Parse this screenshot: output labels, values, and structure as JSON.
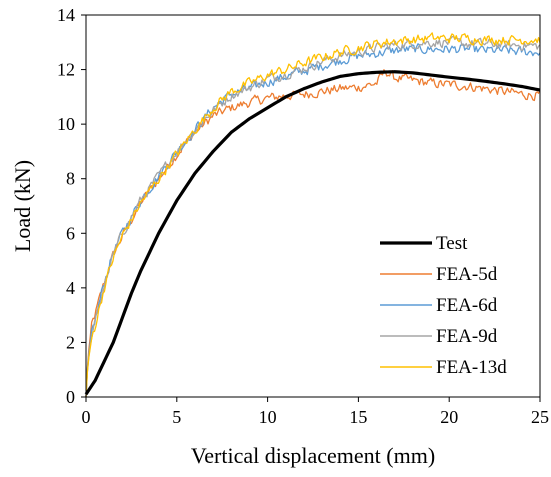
{
  "chart_data": {
    "type": "line",
    "xlabel": "Vertical displacement (mm)",
    "ylabel": "Load (kN)",
    "xlim": [
      0,
      25
    ],
    "ylim": [
      0,
      14
    ],
    "xticks": [
      "0",
      "5",
      "10",
      "15",
      "20",
      "25"
    ],
    "yticks": [
      "0",
      "2",
      "4",
      "6",
      "8",
      "10",
      "12",
      "14"
    ],
    "grid": false,
    "legend_position": "bottom-right",
    "series": [
      {
        "name": "Test",
        "color": "#000000",
        "line_style": "thick-solid",
        "x": [
          0,
          0.5,
          1,
          1.5,
          2,
          2.5,
          3,
          3.5,
          4,
          5,
          6,
          7,
          8,
          9,
          10,
          11,
          12,
          13,
          14,
          15,
          16,
          17,
          18,
          19,
          20,
          21,
          22,
          23,
          24,
          25
        ],
        "y": [
          0.1,
          0.6,
          1.3,
          2.0,
          2.9,
          3.8,
          4.6,
          5.3,
          6.0,
          7.2,
          8.2,
          9.0,
          9.7,
          10.2,
          10.6,
          11.0,
          11.3,
          11.55,
          11.75,
          11.85,
          11.9,
          11.92,
          11.88,
          11.8,
          11.72,
          11.65,
          11.57,
          11.48,
          11.38,
          11.25
        ]
      },
      {
        "name": "FEA-5d",
        "color": "#ED7D31",
        "line_style": "thin-noisy",
        "x": [
          0,
          0.1,
          0.3,
          0.5,
          1,
          1.5,
          2,
          3,
          4,
          5,
          6,
          7,
          8,
          9,
          10,
          11,
          12,
          13,
          14,
          15,
          16,
          16.5,
          17,
          18,
          19,
          20,
          21,
          22,
          23,
          24,
          25
        ],
        "y": [
          0,
          1.4,
          2.6,
          3.0,
          4.2,
          5.2,
          5.9,
          7.1,
          8.0,
          8.9,
          9.7,
          10.3,
          10.6,
          10.8,
          10.95,
          11.05,
          11.1,
          11.2,
          11.3,
          11.35,
          11.5,
          11.95,
          11.7,
          11.6,
          11.5,
          11.45,
          11.4,
          11.3,
          11.2,
          11.1,
          11.05
        ]
      },
      {
        "name": "FEA-6d",
        "color": "#5B9BD5",
        "line_style": "thin-noisy",
        "x": [
          0,
          0.1,
          0.3,
          0.5,
          1,
          1.5,
          2,
          3,
          4,
          5,
          6,
          7,
          8,
          9,
          10,
          11,
          12,
          13,
          14,
          15,
          16,
          17,
          18,
          19,
          20,
          21,
          22,
          23,
          24,
          25
        ],
        "y": [
          0,
          1.3,
          2.3,
          2.8,
          4.2,
          5.3,
          6.0,
          7.2,
          8.1,
          9.0,
          9.8,
          10.6,
          11.1,
          11.3,
          11.55,
          11.75,
          11.95,
          12.15,
          12.35,
          12.5,
          12.6,
          12.7,
          12.75,
          12.75,
          12.75,
          12.75,
          12.7,
          12.7,
          12.65,
          12.65
        ]
      },
      {
        "name": "FEA-9d",
        "color": "#A5A5A5",
        "line_style": "thin-noisy",
        "x": [
          0,
          0.1,
          0.3,
          0.5,
          1,
          1.5,
          2,
          3,
          4,
          5,
          6,
          7,
          8,
          9,
          10,
          11,
          12,
          13,
          14,
          15,
          16,
          17,
          18,
          19,
          20,
          21,
          22,
          23,
          24,
          25
        ],
        "y": [
          0,
          1.2,
          2.2,
          2.7,
          4.1,
          5.2,
          6.0,
          7.2,
          8.1,
          9.0,
          9.8,
          10.5,
          11.05,
          11.35,
          11.65,
          11.85,
          12.05,
          12.3,
          12.5,
          12.65,
          12.8,
          12.9,
          12.95,
          13.0,
          13.0,
          12.95,
          12.95,
          12.9,
          12.9,
          12.85
        ]
      },
      {
        "name": "FEA-13d",
        "color": "#FFC000",
        "line_style": "thin-noisy",
        "x": [
          0,
          0.1,
          0.3,
          0.5,
          1,
          1.5,
          2,
          3,
          4,
          5,
          6,
          7,
          8,
          9,
          10,
          11,
          12,
          13,
          14,
          15,
          16,
          17,
          18,
          19,
          20,
          21,
          22,
          23,
          24,
          25
        ],
        "y": [
          0,
          1.2,
          2.1,
          2.6,
          4.0,
          5.1,
          5.9,
          7.1,
          8.0,
          8.9,
          9.8,
          10.6,
          11.2,
          11.5,
          11.8,
          12.0,
          12.25,
          12.45,
          12.65,
          12.8,
          12.95,
          13.05,
          13.1,
          13.15,
          13.15,
          13.15,
          13.1,
          13.1,
          13.1,
          13.1
        ]
      }
    ]
  }
}
